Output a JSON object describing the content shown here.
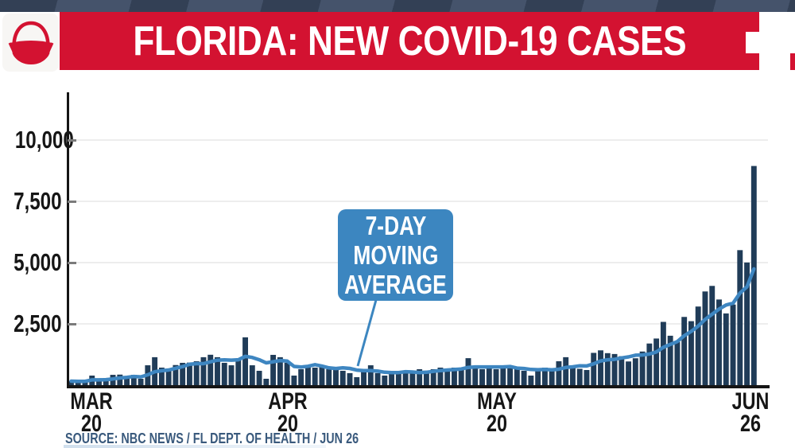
{
  "header": {
    "title": "FLORIDA: NEW COVID-19 CASES",
    "banner_color": "#d31231"
  },
  "chart_data": {
    "type": "bar",
    "title": "FLORIDA: NEW COVID-19 CASES",
    "x_domain": {
      "start": "MAR 20",
      "end": "JUN 26",
      "days": 99
    },
    "ylim": [
      0,
      12000
    ],
    "grid": "horizontal",
    "y_ticks": [
      {
        "value": 10000,
        "label": "10,000"
      },
      {
        "value": 7500,
        "label": "7,500"
      },
      {
        "value": 5000,
        "label": "5,000"
      },
      {
        "value": 2500,
        "label": "2,500"
      }
    ],
    "x_ticks": [
      {
        "month": "MAR",
        "day": "20",
        "day_index": 1
      },
      {
        "month": "APR",
        "day": "20",
        "day_index": 32
      },
      {
        "month": "MAY",
        "day": "20",
        "day_index": 62
      },
      {
        "month": "JUN",
        "day": "26",
        "day_index": 99
      }
    ],
    "values": [
      163,
      142,
      160,
      390,
      219,
      279,
      420,
      430,
      330,
      420,
      260,
      810,
      1140,
      715,
      650,
      820,
      910,
      920,
      975,
      1140,
      1240,
      1140,
      910,
      810,
      1040,
      1950,
      810,
      585,
      260,
      1235,
      1140,
      910,
      390,
      650,
      810,
      715,
      810,
      650,
      715,
      585,
      490,
      325,
      585,
      810,
      490,
      390,
      490,
      490,
      585,
      490,
      650,
      585,
      650,
      715,
      650,
      715,
      650,
      1100,
      715,
      650,
      715,
      650,
      715,
      780,
      650,
      585,
      390,
      650,
      715,
      585,
      975,
      1140,
      780,
      667,
      617,
      1317,
      1419,
      1305,
      1270,
      1180,
      966,
      1096,
      1371,
      1698,
      1902,
      2581,
      2016,
      1758,
      2783,
      2610,
      3207,
      3822,
      4049,
      3494,
      2926,
      3289,
      5508,
      5004,
      8942
    ],
    "series": [
      {
        "name": "daily new cases",
        "type": "bar",
        "color": "#203c58"
      },
      {
        "name": "7-day moving average",
        "type": "line",
        "color": "#3e86c1",
        "derived_from": "trailing 7-day mean of daily values"
      }
    ],
    "annotation": {
      "lines": [
        "7-DAY",
        "MOVING",
        "AVERAGE"
      ],
      "box_color": "#3c86c0"
    }
  },
  "footer": {
    "source": "SOURCE: NBC NEWS / FL DEPT. OF HEALTH / JUN 26"
  }
}
